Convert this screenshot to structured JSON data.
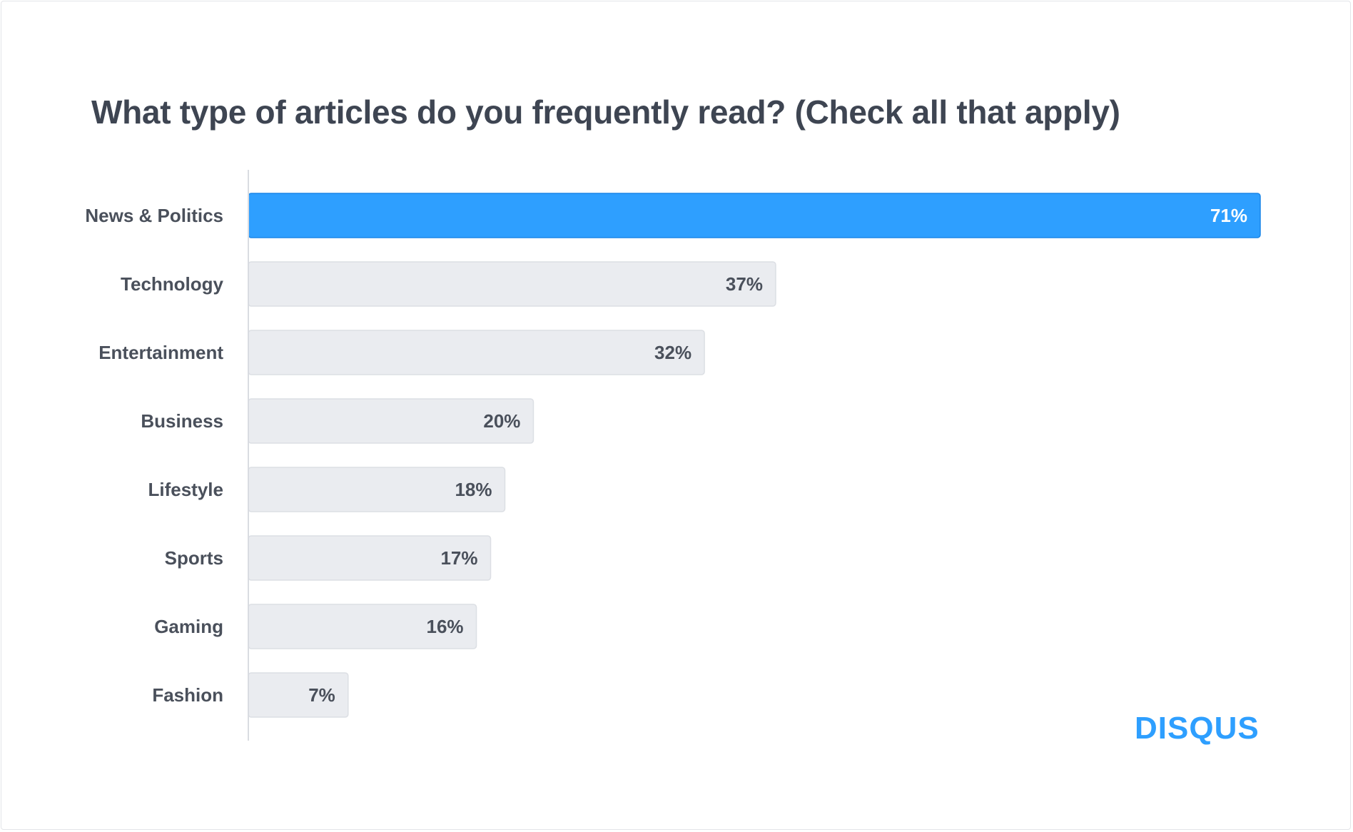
{
  "brand": "DISQUS",
  "colors": {
    "highlight_bar": "#2e9fff",
    "highlight_border": "#1a86e8",
    "bar": "#eaecf0",
    "bar_border": "#dcdfe4",
    "text": "#4a505b",
    "highlight_text": "#ffffff",
    "axis": "#d9dce1"
  },
  "chart_data": {
    "type": "bar",
    "orientation": "horizontal",
    "title": "What type of articles do you frequently read? (Check all that apply)",
    "categories": [
      "News & Politics",
      "Technology",
      "Entertainment",
      "Business",
      "Lifestyle",
      "Sports",
      "Gaming",
      "Fashion"
    ],
    "values": [
      71,
      37,
      32,
      20,
      18,
      17,
      16,
      7
    ],
    "value_labels": [
      "71%",
      "37%",
      "32%",
      "20%",
      "18%",
      "17%",
      "16%",
      "7%"
    ],
    "highlighted_category": "News & Politics",
    "xlim": [
      0,
      71
    ],
    "unit": "%",
    "grid": false,
    "legend": "none"
  }
}
